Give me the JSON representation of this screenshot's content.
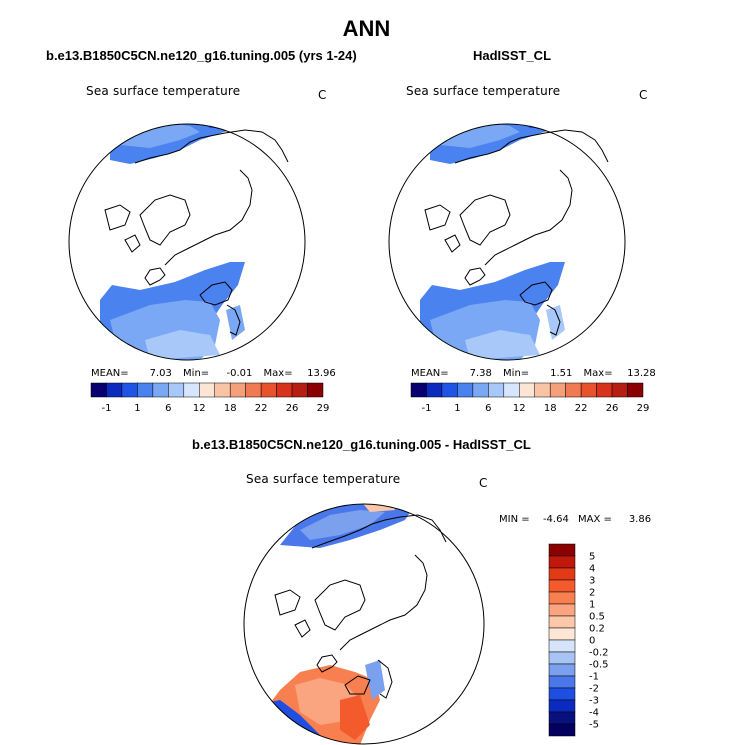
{
  "page_title": "ANN",
  "chart_data": [
    {
      "type": "map",
      "projection": "north polar stereographic",
      "title": "b.e13.B1850C5CN.ne120_g16.tuning.005 (yrs 1-24)",
      "variable": "Sea surface temperature",
      "units": "C",
      "stats": {
        "mean_label": "MEAN=",
        "mean": "7.03",
        "min_label": "Min=",
        "min": "-0.01",
        "max_label": "Max=",
        "max": "13.96"
      },
      "colorbar": {
        "tick_labels": [
          "-1",
          "1",
          "6",
          "12",
          "18",
          "22",
          "26",
          "29"
        ],
        "colors": [
          "#08006e",
          "#0a2ac0",
          "#1f55e6",
          "#4a82f0",
          "#7aa8f5",
          "#a8c8fa",
          "#d6e6fc",
          "#fde5d6",
          "#f9c4a6",
          "#f5a07a",
          "#f07a52",
          "#e8532c",
          "#d8321a",
          "#b51e10",
          "#8b0000"
        ]
      }
    },
    {
      "type": "map",
      "projection": "north polar stereographic",
      "title": "HadISST_CL",
      "variable": "Sea surface temperature",
      "units": "C",
      "stats": {
        "mean_label": "MEAN=",
        "mean": "7.38",
        "min_label": "Min=",
        "min": "1.51",
        "max_label": "Max=",
        "max": "13.28"
      },
      "colorbar": {
        "tick_labels": [
          "-1",
          "1",
          "6",
          "12",
          "18",
          "22",
          "26",
          "29"
        ],
        "colors": [
          "#08006e",
          "#0a2ac0",
          "#1f55e6",
          "#4a82f0",
          "#7aa8f5",
          "#a8c8fa",
          "#d6e6fc",
          "#fde5d6",
          "#f9c4a6",
          "#f5a07a",
          "#f07a52",
          "#e8532c",
          "#d8321a",
          "#b51e10",
          "#8b0000"
        ]
      }
    },
    {
      "type": "map",
      "projection": "north polar stereographic",
      "title": "b.e13.B1850C5CN.ne120_g16.tuning.005 - HadISST_CL",
      "variable": "Sea surface temperature",
      "units": "C",
      "stats": {
        "min_label": "MIN =",
        "min": "-4.64",
        "max_label": "MAX =",
        "max": "3.86"
      },
      "colorbar": {
        "tick_labels": [
          "5",
          "4",
          "3",
          "2",
          "1",
          "0.5",
          "0.2",
          "0",
          "-0.2",
          "-0.5",
          "-1",
          "-2",
          "-3",
          "-4",
          "-5"
        ],
        "colors": [
          "#8b0000",
          "#c0180a",
          "#e23a16",
          "#f35a2c",
          "#f88050",
          "#fba480",
          "#fdc8aa",
          "#fde6d6",
          "#d6e4fa",
          "#a8c4f4",
          "#7aa0ee",
          "#4a78ea",
          "#1f4fe0",
          "#0a2ac0",
          "#08107e",
          "#030060"
        ]
      }
    }
  ]
}
